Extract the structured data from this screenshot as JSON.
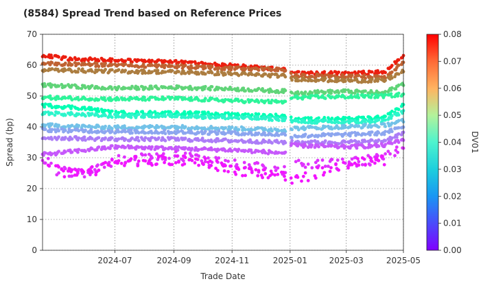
{
  "chart_data": {
    "type": "scatter",
    "title": "(8584)   Spread Trend based on Reference Prices",
    "xlabel": "Trade Date",
    "ylabel": "Spread (bp)",
    "colorbar_label": "DV01",
    "x_range": [
      "2024-04-16",
      "2025-04-30"
    ],
    "ylim": [
      0,
      70
    ],
    "yticks": [
      "0",
      "10",
      "20",
      "30",
      "40",
      "50",
      "60",
      "70"
    ],
    "xticks": [
      {
        "date": "2024-07-01",
        "label": "2024-07"
      },
      {
        "date": "2024-09-01",
        "label": "2024-09"
      },
      {
        "date": "2024-11-01",
        "label": "2024-11"
      },
      {
        "date": "2025-01-01",
        "label": "2025-01"
      },
      {
        "date": "2025-03-01",
        "label": "2025-03"
      },
      {
        "date": "2025-05-01",
        "label": "2025-05"
      }
    ],
    "colorbar_range": [
      0.0,
      0.08
    ],
    "colorbar_ticks": [
      "0.00",
      "0.01",
      "0.02",
      "0.03",
      "0.04",
      "0.05",
      "0.06",
      "0.07",
      "0.08"
    ],
    "colormap": "rainbow",
    "grid": true,
    "series": [
      {
        "dv01": 0.077,
        "values": [
          [
            "2024-04-16",
            63.3
          ],
          [
            "2024-05-15",
            62.0
          ],
          [
            "2024-07-01",
            61.5
          ],
          [
            "2024-09-01",
            61.0
          ],
          [
            "2024-11-01",
            60.0
          ],
          [
            "2024-12-28",
            58.5
          ],
          [
            "2025-01-03",
            57.5
          ],
          [
            "2025-03-01",
            57.3
          ],
          [
            "2025-04-10",
            57.8
          ],
          [
            "2025-04-30",
            62.8
          ]
        ]
      },
      {
        "dv01": 0.07,
        "values": [
          [
            "2024-04-16",
            60.5
          ],
          [
            "2024-07-01",
            60.0
          ],
          [
            "2024-09-01",
            59.6
          ],
          [
            "2024-11-01",
            59.0
          ],
          [
            "2024-12-28",
            58.5
          ],
          [
            "2025-01-03",
            56.5
          ],
          [
            "2025-03-01",
            56.5
          ],
          [
            "2025-04-10",
            56.0
          ],
          [
            "2025-04-30",
            61.0
          ]
        ]
      },
      {
        "dv01": 0.067,
        "values": [
          [
            "2024-04-16",
            58.5
          ],
          [
            "2024-07-01",
            58.0
          ],
          [
            "2024-09-01",
            57.8
          ],
          [
            "2024-11-01",
            57.2
          ],
          [
            "2024-12-28",
            56.5
          ],
          [
            "2025-01-03",
            55.5
          ],
          [
            "2025-03-01",
            55.0
          ],
          [
            "2025-04-10",
            55.0
          ],
          [
            "2025-04-30",
            58.0
          ]
        ]
      },
      {
        "dv01": 0.055,
        "values": [
          [
            "2024-04-16",
            53.5
          ],
          [
            "2024-07-01",
            52.5
          ],
          [
            "2024-09-01",
            52.8
          ],
          [
            "2024-11-01",
            52.3
          ],
          [
            "2024-12-28",
            51.5
          ],
          [
            "2025-01-03",
            51.0
          ],
          [
            "2025-03-01",
            51.5
          ],
          [
            "2025-04-10",
            51.0
          ],
          [
            "2025-04-30",
            54.0
          ]
        ]
      },
      {
        "dv01": 0.047,
        "values": [
          [
            "2024-04-16",
            49.5
          ],
          [
            "2024-07-01",
            49.0
          ],
          [
            "2024-09-01",
            49.2
          ],
          [
            "2024-11-01",
            48.5
          ],
          [
            "2024-12-28",
            48.0
          ],
          [
            "2025-01-03",
            49.5
          ],
          [
            "2025-03-01",
            49.8
          ],
          [
            "2025-04-10",
            50.0
          ],
          [
            "2025-04-30",
            50.5
          ]
        ]
      },
      {
        "dv01": 0.04,
        "values": [
          [
            "2024-04-16",
            47.0
          ],
          [
            "2024-06-01",
            46.0
          ],
          [
            "2024-07-01",
            44.5
          ],
          [
            "2024-09-01",
            44.5
          ],
          [
            "2024-11-01",
            44.0
          ],
          [
            "2024-12-28",
            43.5
          ],
          [
            "2025-01-03",
            42.5
          ],
          [
            "2025-03-01",
            42.5
          ],
          [
            "2025-04-10",
            43.0
          ],
          [
            "2025-04-30",
            47.0
          ]
        ]
      },
      {
        "dv01": 0.033,
        "values": [
          [
            "2024-04-16",
            44.5
          ],
          [
            "2024-07-01",
            43.5
          ],
          [
            "2024-09-01",
            43.6
          ],
          [
            "2024-11-01",
            43.0
          ],
          [
            "2024-12-28",
            42.5
          ],
          [
            "2025-01-03",
            41.8
          ],
          [
            "2025-03-01",
            41.5
          ],
          [
            "2025-04-10",
            42.0
          ],
          [
            "2025-04-30",
            45.0
          ]
        ]
      },
      {
        "dv01": 0.022,
        "values": [
          [
            "2024-04-16",
            40.5
          ],
          [
            "2024-07-01",
            39.8
          ],
          [
            "2024-09-01",
            40.0
          ],
          [
            "2024-11-01",
            39.5
          ],
          [
            "2024-12-28",
            39.0
          ],
          [
            "2025-01-03",
            39.5
          ],
          [
            "2025-03-01",
            40.0
          ],
          [
            "2025-04-10",
            40.5
          ],
          [
            "2025-04-30",
            42.0
          ]
        ]
      },
      {
        "dv01": 0.018,
        "values": [
          [
            "2024-04-16",
            39.0
          ],
          [
            "2024-07-01",
            38.5
          ],
          [
            "2024-09-01",
            38.3
          ],
          [
            "2024-11-01",
            38.0
          ],
          [
            "2024-12-28",
            37.5
          ],
          [
            "2025-01-03",
            37.0
          ],
          [
            "2025-03-01",
            37.5
          ],
          [
            "2025-04-10",
            38.0
          ],
          [
            "2025-04-30",
            40.0
          ]
        ]
      },
      {
        "dv01": 0.013,
        "values": [
          [
            "2024-04-16",
            36.5
          ],
          [
            "2024-07-01",
            36.0
          ],
          [
            "2024-09-01",
            36.0
          ],
          [
            "2024-11-01",
            35.5
          ],
          [
            "2024-12-28",
            35.0
          ],
          [
            "2025-01-03",
            35.0
          ],
          [
            "2025-03-01",
            35.0
          ],
          [
            "2025-04-10",
            35.5
          ],
          [
            "2025-04-30",
            38.0
          ]
        ]
      },
      {
        "dv01": 0.009,
        "values": [
          [
            "2024-04-16",
            31.0
          ],
          [
            "2024-06-01",
            32.5
          ],
          [
            "2024-07-01",
            33.5
          ],
          [
            "2024-09-01",
            33.0
          ],
          [
            "2024-11-01",
            32.5
          ],
          [
            "2024-12-28",
            31.5
          ],
          [
            "2025-01-03",
            34.0
          ],
          [
            "2025-03-01",
            33.5
          ],
          [
            "2025-04-10",
            34.0
          ],
          [
            "2025-04-30",
            36.0
          ]
        ]
      },
      {
        "dv01": 0.005,
        "values": [
          [
            "2024-04-16",
            30.0
          ],
          [
            "2024-05-01",
            26.0
          ],
          [
            "2024-06-01",
            25.0
          ],
          [
            "2024-07-01",
            29.0
          ],
          [
            "2024-09-01",
            30.5
          ],
          [
            "2024-11-01",
            28.0
          ],
          [
            "2024-12-28",
            25.5
          ],
          [
            "2025-01-03",
            28.5
          ],
          [
            "2025-03-01",
            28.0
          ],
          [
            "2025-04-10",
            30.0
          ],
          [
            "2025-04-30",
            34.0
          ]
        ]
      },
      {
        "dv01": 0.002,
        "values": [
          [
            "2024-04-20",
            28.0
          ],
          [
            "2024-05-10",
            25.0
          ],
          [
            "2024-06-15",
            26.0
          ],
          [
            "2024-07-05",
            29.0
          ],
          [
            "2024-09-20",
            29.0
          ],
          [
            "2024-11-15",
            25.5
          ],
          [
            "2024-12-28",
            23.5
          ],
          [
            "2025-01-10",
            23.0
          ],
          [
            "2025-02-15",
            27.0
          ],
          [
            "2025-03-15",
            28.5
          ],
          [
            "2025-04-10",
            29.0
          ]
        ]
      }
    ]
  }
}
